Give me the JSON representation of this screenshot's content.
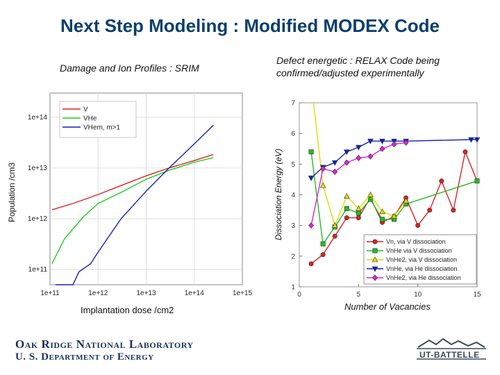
{
  "title": "Next Step Modeling : Modified MODEX Code",
  "left_subtitle": "Damage and Ion Profiles : SRIM",
  "right_subtitle_line1": "Defect energetic : RELAX Code being",
  "right_subtitle_line2": "confirmed/adjusted experimentally",
  "org_line1": "Oak Ridge National Laboratory",
  "org_line2": "U. S. Department of Energy",
  "logo_text": "UT-BATTELLE",
  "chart_data": [
    {
      "type": "line",
      "ylabel": "Population /cm3",
      "xlabel": "Implantation dose /cm2",
      "xscale": "log",
      "yscale": "log",
      "xlim": [
        100000000000.0,
        1000000000000000.0
      ],
      "ylim": [
        50000000000.0,
        300000000000000.0
      ],
      "x_ticks": [
        "1e+11",
        "1e+12",
        "1e+13",
        "1e+14",
        "1e+15"
      ],
      "y_ticks": [
        "1e+11",
        "1e+12",
        "1e+13",
        "1e+14"
      ],
      "legend": "top-left",
      "series": [
        {
          "name": "V",
          "color": "#d22",
          "points": [
            [
              110000000000.0,
              1500000000000.0
            ],
            [
              300000000000.0,
              2000000000000.0
            ],
            [
              1000000000000.0,
              3000000000000.0
            ],
            [
              3000000000000.0,
              4500000000000.0
            ],
            [
              10000000000000.0,
              7000000000000.0
            ],
            [
              30000000000000.0,
              10000000000000.0
            ],
            [
              100000000000000.0,
              14000000000000.0
            ],
            [
              250000000000000.0,
              18500000000000.0
            ]
          ]
        },
        {
          "name": "VHe",
          "color": "#2c2",
          "points": [
            [
              110000000000.0,
              130000000000.0
            ],
            [
              200000000000.0,
              400000000000.0
            ],
            [
              500000000000.0,
              1100000000000.0
            ],
            [
              1000000000000.0,
              2000000000000.0
            ],
            [
              3000000000000.0,
              3300000000000.0
            ],
            [
              10000000000000.0,
              6000000000000.0
            ],
            [
              30000000000000.0,
              9000000000000.0
            ],
            [
              100000000000000.0,
              13000000000000.0
            ],
            [
              250000000000000.0,
              16000000000000.0
            ]
          ]
        },
        {
          "name": "VHem, m>1",
          "color": "#12b",
          "points": [
            [
              130000000000.0,
              50000000000.0
            ],
            [
              300000000000.0,
              50000000000.0
            ],
            [
              400000000000.0,
              90000000000.0
            ],
            [
              700000000000.0,
              130000000000.0
            ],
            [
              1000000000000.0,
              220000000000.0
            ],
            [
              3000000000000.0,
              1000000000000.0
            ],
            [
              10000000000000.0,
              3500000000000.0
            ],
            [
              30000000000000.0,
              10000000000000.0
            ],
            [
              100000000000000.0,
              30000000000000.0
            ],
            [
              250000000000000.0,
              70000000000000.0
            ]
          ]
        }
      ]
    },
    {
      "type": "line",
      "ylabel": "Dissociation Energy (eV)",
      "xlabel": "Number of Vacancies",
      "xlim": [
        0,
        15
      ],
      "ylim": [
        1,
        7
      ],
      "x_ticks": [
        "0",
        "5",
        "10",
        "15"
      ],
      "y_ticks": [
        "1",
        "2",
        "3",
        "4",
        "5",
        "6",
        "7"
      ],
      "legend": "bottom-right",
      "series": [
        {
          "name": "Vn, via V dissociation",
          "color": "#d22",
          "marker": "circle",
          "x": [
            1,
            2,
            3,
            4,
            5,
            6,
            7,
            8,
            9,
            10,
            11,
            12,
            13,
            14,
            15
          ],
          "y": [
            1.75,
            2.05,
            2.65,
            3.25,
            3.25,
            3.9,
            3.1,
            3.3,
            3.9,
            3.0,
            3.5,
            4.45,
            3.5,
            5.4,
            4.45
          ]
        },
        {
          "name": "VnHe via V dissociation",
          "color": "#2b2",
          "marker": "square",
          "x": [
            1,
            2,
            3,
            4,
            5,
            6,
            7,
            8,
            9,
            15
          ],
          "y": [
            5.4,
            2.4,
            2.95,
            3.55,
            3.4,
            3.85,
            3.2,
            3.2,
            3.7,
            4.45
          ]
        },
        {
          "name": "VnHe2, via V dissociation",
          "color": "#dd0",
          "marker": "triangle-up",
          "x": [
            1.2,
            2,
            3,
            4,
            5,
            6,
            7,
            8,
            9
          ],
          "y": [
            7.0,
            4.3,
            3.0,
            3.95,
            3.55,
            4.0,
            3.45,
            3.3,
            3.8
          ]
        },
        {
          "name": "VnHe, via He dissociation",
          "color": "#12b",
          "marker": "triangle-down",
          "x": [
            1,
            2,
            3,
            4,
            5,
            6,
            7,
            8,
            9,
            14.5,
            15
          ],
          "y": [
            4.55,
            4.9,
            5.05,
            5.4,
            5.55,
            5.75,
            5.75,
            5.75,
            5.75,
            5.8,
            5.8
          ]
        },
        {
          "name": "VnHe2, via He dissociation",
          "color": "#d2d",
          "marker": "diamond",
          "x": [
            1,
            2,
            3,
            4,
            5,
            6,
            7,
            8,
            9
          ],
          "y": [
            3.0,
            4.85,
            4.75,
            5.05,
            5.2,
            5.25,
            5.5,
            5.65,
            5.7
          ]
        }
      ]
    }
  ]
}
